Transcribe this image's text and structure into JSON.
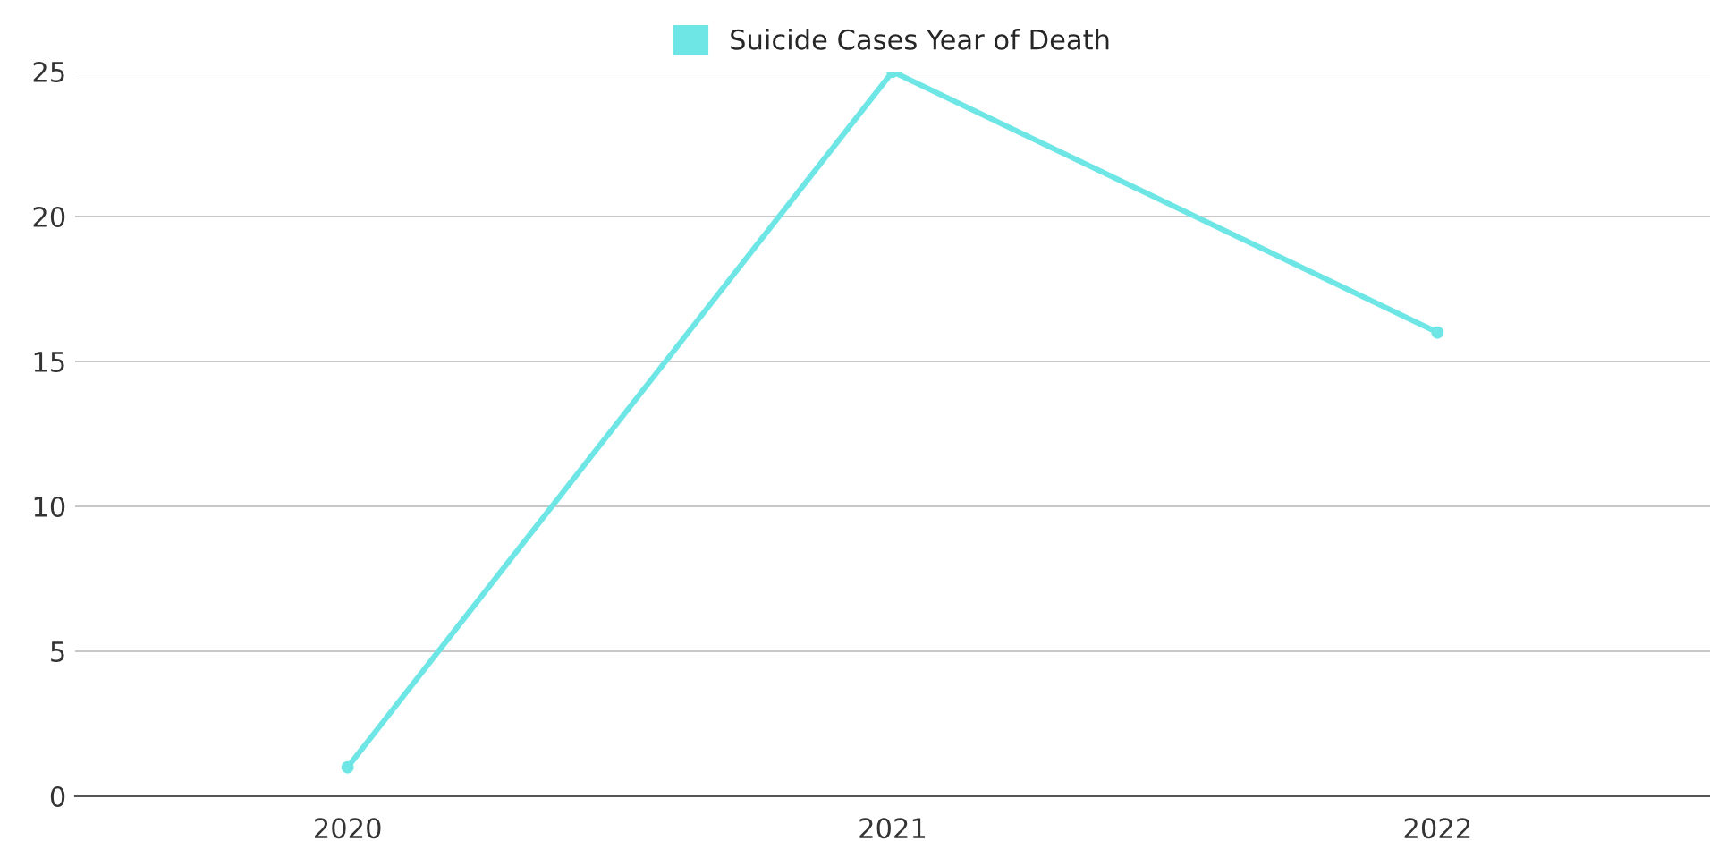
{
  "chart_data": {
    "type": "line",
    "categories": [
      "2020",
      "2021",
      "2022"
    ],
    "series": [
      {
        "name": "Suicide Cases Year of Death",
        "color": "#6ee6e6",
        "values": [
          1,
          25,
          16
        ]
      }
    ],
    "ylim": [
      0,
      25
    ],
    "yticks": [
      0,
      5,
      10,
      15,
      20,
      25
    ],
    "grid": "y",
    "legend": "top",
    "marker": "circle"
  }
}
